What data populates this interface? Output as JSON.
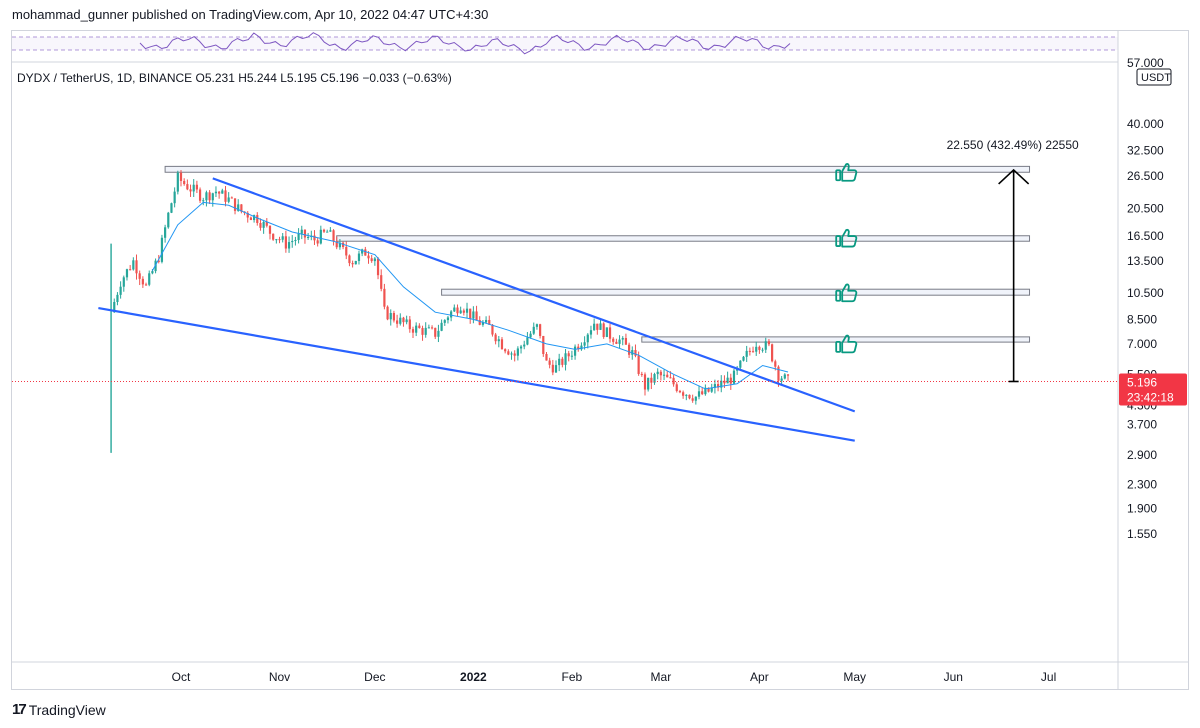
{
  "header": {
    "publisher": "mohammad_gunner published on TradingView.com, Apr 10, 2022 04:47 UTC+4:30"
  },
  "footer": {
    "brand": "TradingView"
  },
  "chart_data": {
    "type": "candlestick",
    "symbol_line": "DYDX / TetherUS, 1D, BINANCE",
    "ohlc": {
      "open": "O5.231",
      "high": "H5.244",
      "low": "L5.195",
      "close": "C5.196",
      "change": "−0.033 (−0.63%)"
    },
    "currency_label": "USDT",
    "price_tag": "5.196",
    "countdown": "23:42:18",
    "top_axis_partial_label": "57.000",
    "y_axis": {
      "scale": "log",
      "ticks": [
        {
          "label": "40.000",
          "value": 40.0
        },
        {
          "label": "32.500",
          "value": 32.5
        },
        {
          "label": "26.500",
          "value": 26.5
        },
        {
          "label": "20.500",
          "value": 20.5
        },
        {
          "label": "16.500",
          "value": 16.5
        },
        {
          "label": "13.500",
          "value": 13.5
        },
        {
          "label": "10.500",
          "value": 10.5
        },
        {
          "label": "8.500",
          "value": 8.5
        },
        {
          "label": "7.000",
          "value": 7.0
        },
        {
          "label": "5.500",
          "value": 5.5
        },
        {
          "label": "4.300",
          "value": 4.3
        },
        {
          "label": "3.700",
          "value": 3.7
        },
        {
          "label": "2.900",
          "value": 2.9
        },
        {
          "label": "2.300",
          "value": 2.3
        },
        {
          "label": "1.900",
          "value": 1.9
        },
        {
          "label": "1.550",
          "value": 1.55
        }
      ]
    },
    "x_axis": {
      "ticks": [
        {
          "label": "Oct",
          "date": "2021-10-01",
          "bold": false
        },
        {
          "label": "Nov",
          "date": "2021-11-01",
          "bold": false
        },
        {
          "label": "Dec",
          "date": "2021-12-01",
          "bold": false
        },
        {
          "label": "2022",
          "date": "2022-01-01",
          "bold": true
        },
        {
          "label": "Feb",
          "date": "2022-02-01",
          "bold": false
        },
        {
          "label": "Mar",
          "date": "2022-03-01",
          "bold": false
        },
        {
          "label": "Apr",
          "date": "2022-04-01",
          "bold": false
        },
        {
          "label": "May",
          "date": "2022-05-01",
          "bold": false
        },
        {
          "label": "Jun",
          "date": "2022-06-01",
          "bold": false
        },
        {
          "label": "Jul",
          "date": "2022-07-01",
          "bold": false
        }
      ]
    },
    "last_close": 5.196,
    "close_path": [
      [
        "2021-09-09",
        9.0
      ],
      [
        "2021-09-12",
        11.5
      ],
      [
        "2021-09-16",
        13.5
      ],
      [
        "2021-09-20",
        11.0
      ],
      [
        "2021-09-24",
        14.0
      ],
      [
        "2021-09-27",
        19.5
      ],
      [
        "2021-09-30",
        26.0
      ],
      [
        "2021-10-04",
        24.0
      ],
      [
        "2021-10-08",
        22.5
      ],
      [
        "2021-10-12",
        23.5
      ],
      [
        "2021-10-16",
        22.0
      ],
      [
        "2021-10-20",
        20.0
      ],
      [
        "2021-10-25",
        19.0
      ],
      [
        "2021-10-29",
        17.0
      ],
      [
        "2021-11-03",
        15.5
      ],
      [
        "2021-11-08",
        16.5
      ],
      [
        "2021-11-12",
        16.0
      ],
      [
        "2021-11-16",
        17.0
      ],
      [
        "2021-11-20",
        15.0
      ],
      [
        "2021-11-24",
        13.5
      ],
      [
        "2021-11-28",
        14.5
      ],
      [
        "2021-12-01",
        14.0
      ],
      [
        "2021-12-04",
        9.0
      ],
      [
        "2021-12-08",
        8.5
      ],
      [
        "2021-12-12",
        8.0
      ],
      [
        "2021-12-16",
        7.8
      ],
      [
        "2021-12-20",
        7.6
      ],
      [
        "2021-12-24",
        8.8
      ],
      [
        "2021-12-28",
        9.6
      ],
      [
        "2022-01-02",
        8.4
      ],
      [
        "2022-01-06",
        8.0
      ],
      [
        "2022-01-10",
        7.0
      ],
      [
        "2022-01-14",
        6.4
      ],
      [
        "2022-01-18",
        7.4
      ],
      [
        "2022-01-21",
        8.0
      ],
      [
        "2022-01-24",
        6.0
      ],
      [
        "2022-01-27",
        5.8
      ],
      [
        "2022-01-31",
        6.4
      ],
      [
        "2022-02-04",
        7.2
      ],
      [
        "2022-02-08",
        8.3
      ],
      [
        "2022-02-12",
        7.6
      ],
      [
        "2022-02-16",
        7.2
      ],
      [
        "2022-02-20",
        6.5
      ],
      [
        "2022-02-24",
        5.0
      ],
      [
        "2022-02-28",
        5.5
      ],
      [
        "2022-03-04",
        5.2
      ],
      [
        "2022-03-08",
        4.8
      ],
      [
        "2022-03-12",
        4.6
      ],
      [
        "2022-03-16",
        4.8
      ],
      [
        "2022-03-20",
        5.1
      ],
      [
        "2022-03-24",
        5.4
      ],
      [
        "2022-03-28",
        6.4
      ],
      [
        "2022-03-31",
        7.1
      ],
      [
        "2022-04-04",
        6.8
      ],
      [
        "2022-04-07",
        5.5
      ],
      [
        "2022-04-10",
        5.196
      ]
    ],
    "moving_average": [
      [
        "2021-09-22",
        12.5
      ],
      [
        "2021-09-30",
        18.0
      ],
      [
        "2021-10-08",
        21.5
      ],
      [
        "2021-10-16",
        21.0
      ],
      [
        "2021-10-25",
        19.0
      ],
      [
        "2021-11-05",
        17.0
      ],
      [
        "2021-11-18",
        15.8
      ],
      [
        "2021-12-01",
        14.2
      ],
      [
        "2021-12-10",
        11.0
      ],
      [
        "2021-12-20",
        9.0
      ],
      [
        "2022-01-01",
        8.5
      ],
      [
        "2022-01-12",
        7.8
      ],
      [
        "2022-01-24",
        7.0
      ],
      [
        "2022-02-02",
        6.7
      ],
      [
        "2022-02-12",
        7.0
      ],
      [
        "2022-02-22",
        6.4
      ],
      [
        "2022-03-05",
        5.5
      ],
      [
        "2022-03-15",
        4.9
      ],
      [
        "2022-03-25",
        5.1
      ],
      [
        "2022-04-02",
        5.9
      ],
      [
        "2022-04-10",
        5.6
      ]
    ],
    "trendlines": [
      {
        "from": [
          "2021-10-11",
          26.0
        ],
        "to": [
          "2022-05-01",
          4.1
        ]
      },
      {
        "from": [
          "2021-09-05",
          9.3
        ],
        "to": [
          "2022-05-01",
          3.25
        ]
      }
    ],
    "resistance_zones": [
      {
        "from": "2021-09-26",
        "to": "2022-06-25",
        "top": 28.6,
        "bottom": 27.3
      },
      {
        "from": "2021-11-19",
        "to": "2022-06-25",
        "top": 16.5,
        "bottom": 15.8
      },
      {
        "from": "2021-12-22",
        "to": "2022-06-25",
        "top": 10.8,
        "bottom": 10.3
      },
      {
        "from": "2022-02-23",
        "to": "2022-06-25",
        "top": 7.4,
        "bottom": 7.1
      }
    ],
    "measure": {
      "label": "22.550 (432.49%) 22550",
      "date": "2022-06-20",
      "from": 5.196,
      "to": 27.8
    },
    "thumbs_marks": [
      {
        "date": "2022-04-28",
        "value": 27.3,
        "icon": "thumbs-up-icon"
      },
      {
        "date": "2022-04-28",
        "value": 16.2,
        "icon": "thumbs-up-icon"
      },
      {
        "date": "2022-04-28",
        "value": 10.5,
        "icon": "thumbs-up-icon"
      },
      {
        "date": "2022-04-28",
        "value": 7.0,
        "icon": "thumbs-up-icon"
      }
    ],
    "indicator_pane": "RSI",
    "colors": {
      "up": "#26a69a",
      "down": "#ef5350",
      "ma": "#2196f3",
      "trendline": "#2962ff",
      "zone_fill": "#f0f3fa",
      "zone_stroke": "#787b86",
      "price_tag_bg": "#f23645",
      "rsi": "#7e57c2",
      "thumbs": "#089981"
    }
  }
}
